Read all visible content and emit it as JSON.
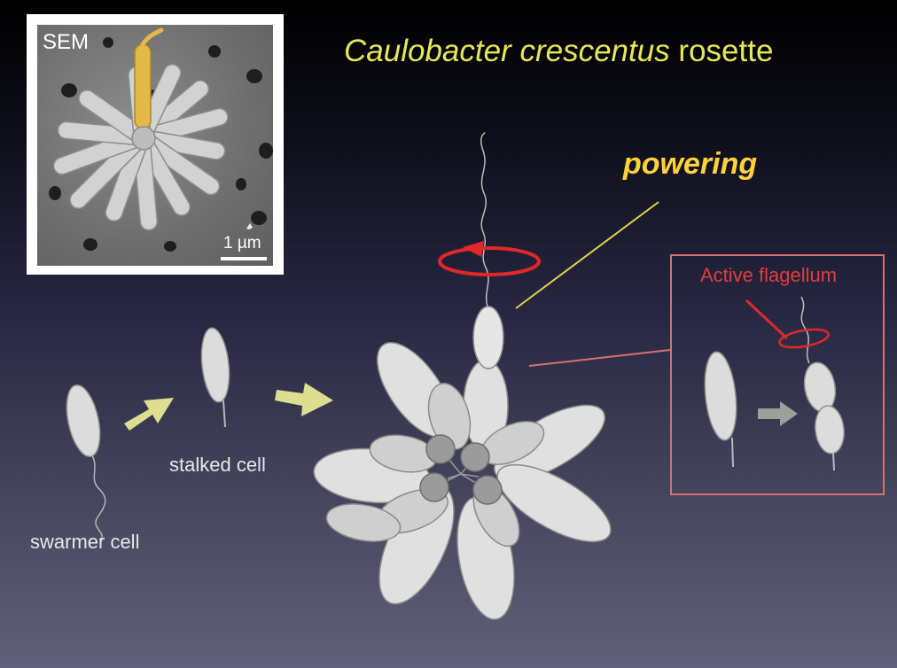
{
  "title": {
    "genus": "Caulobacter crescentus",
    "rest": " rosette"
  },
  "sem_panel": {
    "label": "SEM",
    "scale_label": "1 µm"
  },
  "labels": {
    "powering": "powering",
    "swarmer_cell": "swarmer cell",
    "stalked_cell": "stalked cell",
    "active_flagellum": "Active flagellum"
  },
  "colors": {
    "title": "#e6e65a",
    "powering": "#ffd23a",
    "rotation_arrow": "#e02828",
    "inset_border": "#d87070",
    "transition_arrow": "#dede90",
    "cell_fill": "#dcdcdc",
    "highlighted_cell": "#e3b94a"
  }
}
